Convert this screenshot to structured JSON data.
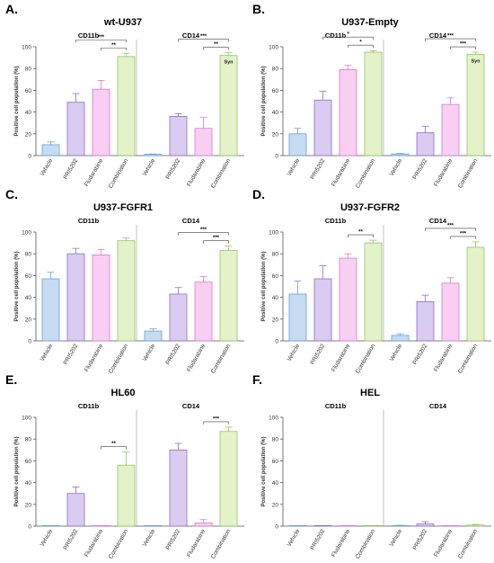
{
  "figure": {
    "y_axis_label": "Positive cell population (%)",
    "y_ticks": [
      "0",
      "20",
      "40",
      "60",
      "80",
      "100"
    ],
    "categories": [
      "Vehicle",
      "PRI5202",
      "Fludarabine",
      "Combination"
    ],
    "colors": {
      "Vehicle": {
        "fill": "#c6dcf2",
        "stroke": "#6b9fd4"
      },
      "PRI5202": {
        "fill": "#d9ccf0",
        "stroke": "#8e6fc9"
      },
      "Fludarabine": {
        "fill": "#f8cff2",
        "stroke": "#d77ad0"
      },
      "Combination": {
        "fill": "#e3f2c9",
        "stroke": "#93c366"
      }
    }
  },
  "chart_data": [
    {
      "type": "bar",
      "panel_letter": "A.",
      "title": "wt-U937",
      "ylabel": "Positive cell population (%)",
      "ylim": [
        0,
        100
      ],
      "groups": [
        {
          "name": "CD11b",
          "categories": [
            "Vehicle",
            "PRI5202",
            "Fludarabine",
            "Combination"
          ],
          "values": [
            10,
            49,
            61,
            91
          ],
          "errors": [
            2.5,
            8,
            8,
            3
          ],
          "significance": [
            {
              "from": 2,
              "to": 3,
              "label": "**"
            },
            {
              "from": 1,
              "to": 3,
              "label": "***"
            }
          ],
          "bar_labels": []
        },
        {
          "name": "CD14",
          "categories": [
            "Vehicle",
            "PRI5202",
            "Fludarabine",
            "Combination"
          ],
          "values": [
            1.2,
            36,
            25,
            92
          ],
          "errors": [
            0.3,
            2.5,
            10,
            2.5
          ],
          "significance": [
            {
              "from": 2,
              "to": 3,
              "label": "**"
            },
            {
              "from": 1,
              "to": 3,
              "label": "***"
            }
          ],
          "bar_labels": [
            {
              "index": 3,
              "label": "Syn"
            }
          ]
        }
      ]
    },
    {
      "type": "bar",
      "panel_letter": "B.",
      "title": "U937-Empty",
      "ylabel": "Positive cell population (%)",
      "ylim": [
        0,
        100
      ],
      "groups": [
        {
          "name": "CD11b",
          "categories": [
            "Vehicle",
            "PRI5202",
            "Fludarabine",
            "Combination"
          ],
          "values": [
            20,
            51,
            79,
            95
          ],
          "errors": [
            5,
            8,
            4,
            1.5
          ],
          "significance": [
            {
              "from": 2,
              "to": 3,
              "label": "*"
            },
            {
              "from": 1,
              "to": 3,
              "label": "*"
            }
          ],
          "bar_labels": []
        },
        {
          "name": "CD14",
          "categories": [
            "Vehicle",
            "PRI5202",
            "Fludarabine",
            "Combination"
          ],
          "values": [
            1.5,
            21,
            47,
            93
          ],
          "errors": [
            0.5,
            6,
            6,
            2
          ],
          "significance": [
            {
              "from": 2,
              "to": 3,
              "label": "***"
            },
            {
              "from": 1,
              "to": 3,
              "label": "***"
            }
          ],
          "bar_labels": [
            {
              "index": 3,
              "label": "Syn"
            }
          ]
        }
      ]
    },
    {
      "type": "bar",
      "panel_letter": "C.",
      "title": "U937-FGFR1",
      "ylabel": "Positive cell population (%)",
      "ylim": [
        0,
        100
      ],
      "groups": [
        {
          "name": "CD11b",
          "categories": [
            "Vehicle",
            "PRI5202",
            "Fludarabine",
            "Combination"
          ],
          "values": [
            57,
            80,
            79,
            92
          ],
          "errors": [
            6,
            5,
            5,
            2.5
          ],
          "significance": [],
          "bar_labels": []
        },
        {
          "name": "CD14",
          "categories": [
            "Vehicle",
            "PRI5202",
            "Fludarabine",
            "Combination"
          ],
          "values": [
            9,
            43,
            54,
            83
          ],
          "errors": [
            2,
            6,
            5,
            4
          ],
          "significance": [
            {
              "from": 2,
              "to": 3,
              "label": "***"
            },
            {
              "from": 1,
              "to": 3,
              "label": "***"
            }
          ],
          "bar_labels": []
        }
      ]
    },
    {
      "type": "bar",
      "panel_letter": "D.",
      "title": "U937-FGFR2",
      "ylabel": "Positive cell population (%)",
      "ylim": [
        0,
        100
      ],
      "groups": [
        {
          "name": "CD11b",
          "categories": [
            "Vehicle",
            "PRI5202",
            "Fludarabine",
            "Combination"
          ],
          "values": [
            43,
            57,
            76,
            90
          ],
          "errors": [
            12,
            12,
            4,
            2.5
          ],
          "significance": [
            {
              "from": 2,
              "to": 3,
              "label": "**"
            }
          ],
          "bar_labels": []
        },
        {
          "name": "CD14",
          "categories": [
            "Vehicle",
            "PRI5202",
            "Fludarabine",
            "Combination"
          ],
          "values": [
            5,
            36,
            53,
            86
          ],
          "errors": [
            1.5,
            6,
            5,
            5
          ],
          "significance": [
            {
              "from": 2,
              "to": 3,
              "label": "***"
            },
            {
              "from": 1,
              "to": 3,
              "label": "***"
            }
          ],
          "bar_labels": []
        }
      ]
    },
    {
      "type": "bar",
      "panel_letter": "E.",
      "title": "HL60",
      "ylabel": "Positive cell population (%)",
      "ylim": [
        0,
        100
      ],
      "groups": [
        {
          "name": "CD11b",
          "categories": [
            "Vehicle",
            "PRI5202",
            "Fludarabine",
            "Combination"
          ],
          "values": [
            0.2,
            30,
            0.2,
            56
          ],
          "errors": [
            0,
            6,
            0,
            12
          ],
          "significance": [
            {
              "from": 2,
              "to": 3,
              "label": "**"
            }
          ],
          "bar_labels": []
        },
        {
          "name": "CD14",
          "categories": [
            "Vehicle",
            "PRI5202",
            "Fludarabine",
            "Combination"
          ],
          "values": [
            0.3,
            70,
            3,
            87
          ],
          "errors": [
            0,
            6,
            3,
            4
          ],
          "significance": [
            {
              "from": 2,
              "to": 3,
              "label": "***"
            }
          ],
          "bar_labels": []
        }
      ]
    },
    {
      "type": "bar",
      "panel_letter": "F.",
      "title": "HEL",
      "ylabel": "Positive cell population (%)",
      "ylim": [
        0,
        100
      ],
      "groups": [
        {
          "name": "CD11b",
          "categories": [
            "Vehicle",
            "PRI5202",
            "Fludarabine",
            "Combination"
          ],
          "values": [
            0.2,
            0.2,
            0.4,
            0.2
          ],
          "errors": [
            0,
            0,
            0.2,
            0
          ],
          "significance": [],
          "bar_labels": []
        },
        {
          "name": "CD14",
          "categories": [
            "Vehicle",
            "PRI5202",
            "Fludarabine",
            "Combination"
          ],
          "values": [
            0.5,
            2,
            0.2,
            1
          ],
          "errors": [
            0.3,
            2,
            0,
            0.5
          ],
          "significance": [],
          "bar_labels": []
        }
      ]
    }
  ]
}
